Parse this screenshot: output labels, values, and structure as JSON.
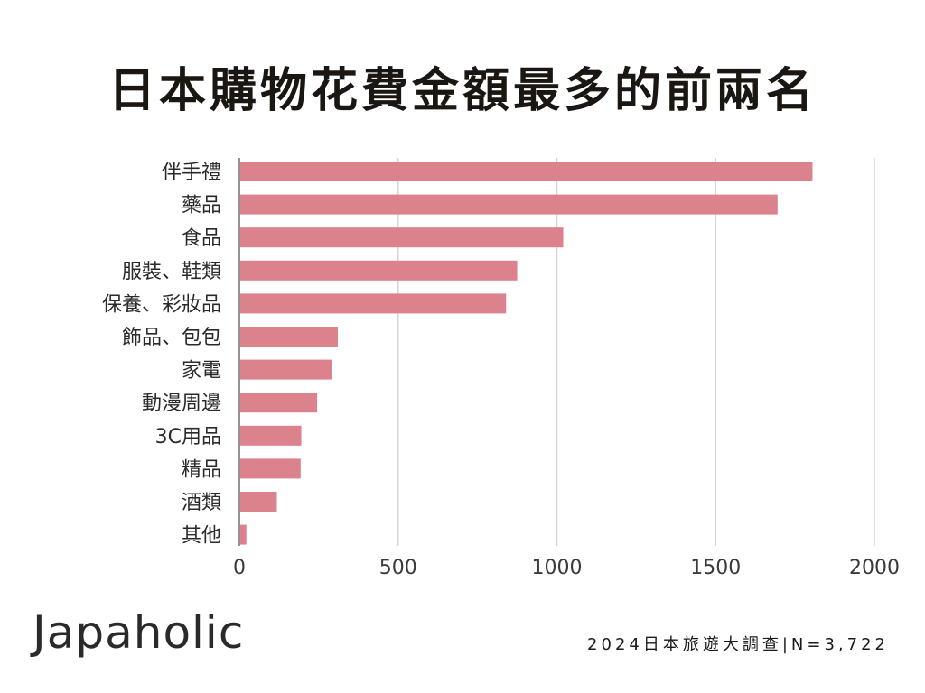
{
  "header": {
    "title": "日本購物花費金額最多的前兩名"
  },
  "footer": {
    "brand": "Japaholic",
    "survey_note": "2024日本旅遊大調查|N=3,722"
  },
  "colors": {
    "bar": "#dc828d",
    "grid": "#d6d6d6",
    "axis": "#6e6e6e"
  },
  "chart_data": {
    "type": "bar",
    "orientation": "horizontal",
    "title": "日本購物花費金額最多的前兩名",
    "xlabel": "",
    "ylabel": "",
    "categories": [
      "伴手禮",
      "藥品",
      "食品",
      "服裝、鞋類",
      "保養、彩妝品",
      "飾品、包包",
      "家電",
      "動漫周邊",
      "3C用品",
      "精品",
      "酒類",
      "其他"
    ],
    "values": [
      1805,
      1695,
      1020,
      875,
      840,
      310,
      290,
      245,
      195,
      193,
      118,
      22
    ],
    "xlim": [
      0,
      2000
    ],
    "xticks": [
      0,
      500,
      1000,
      1500,
      2000
    ],
    "grid": true
  }
}
